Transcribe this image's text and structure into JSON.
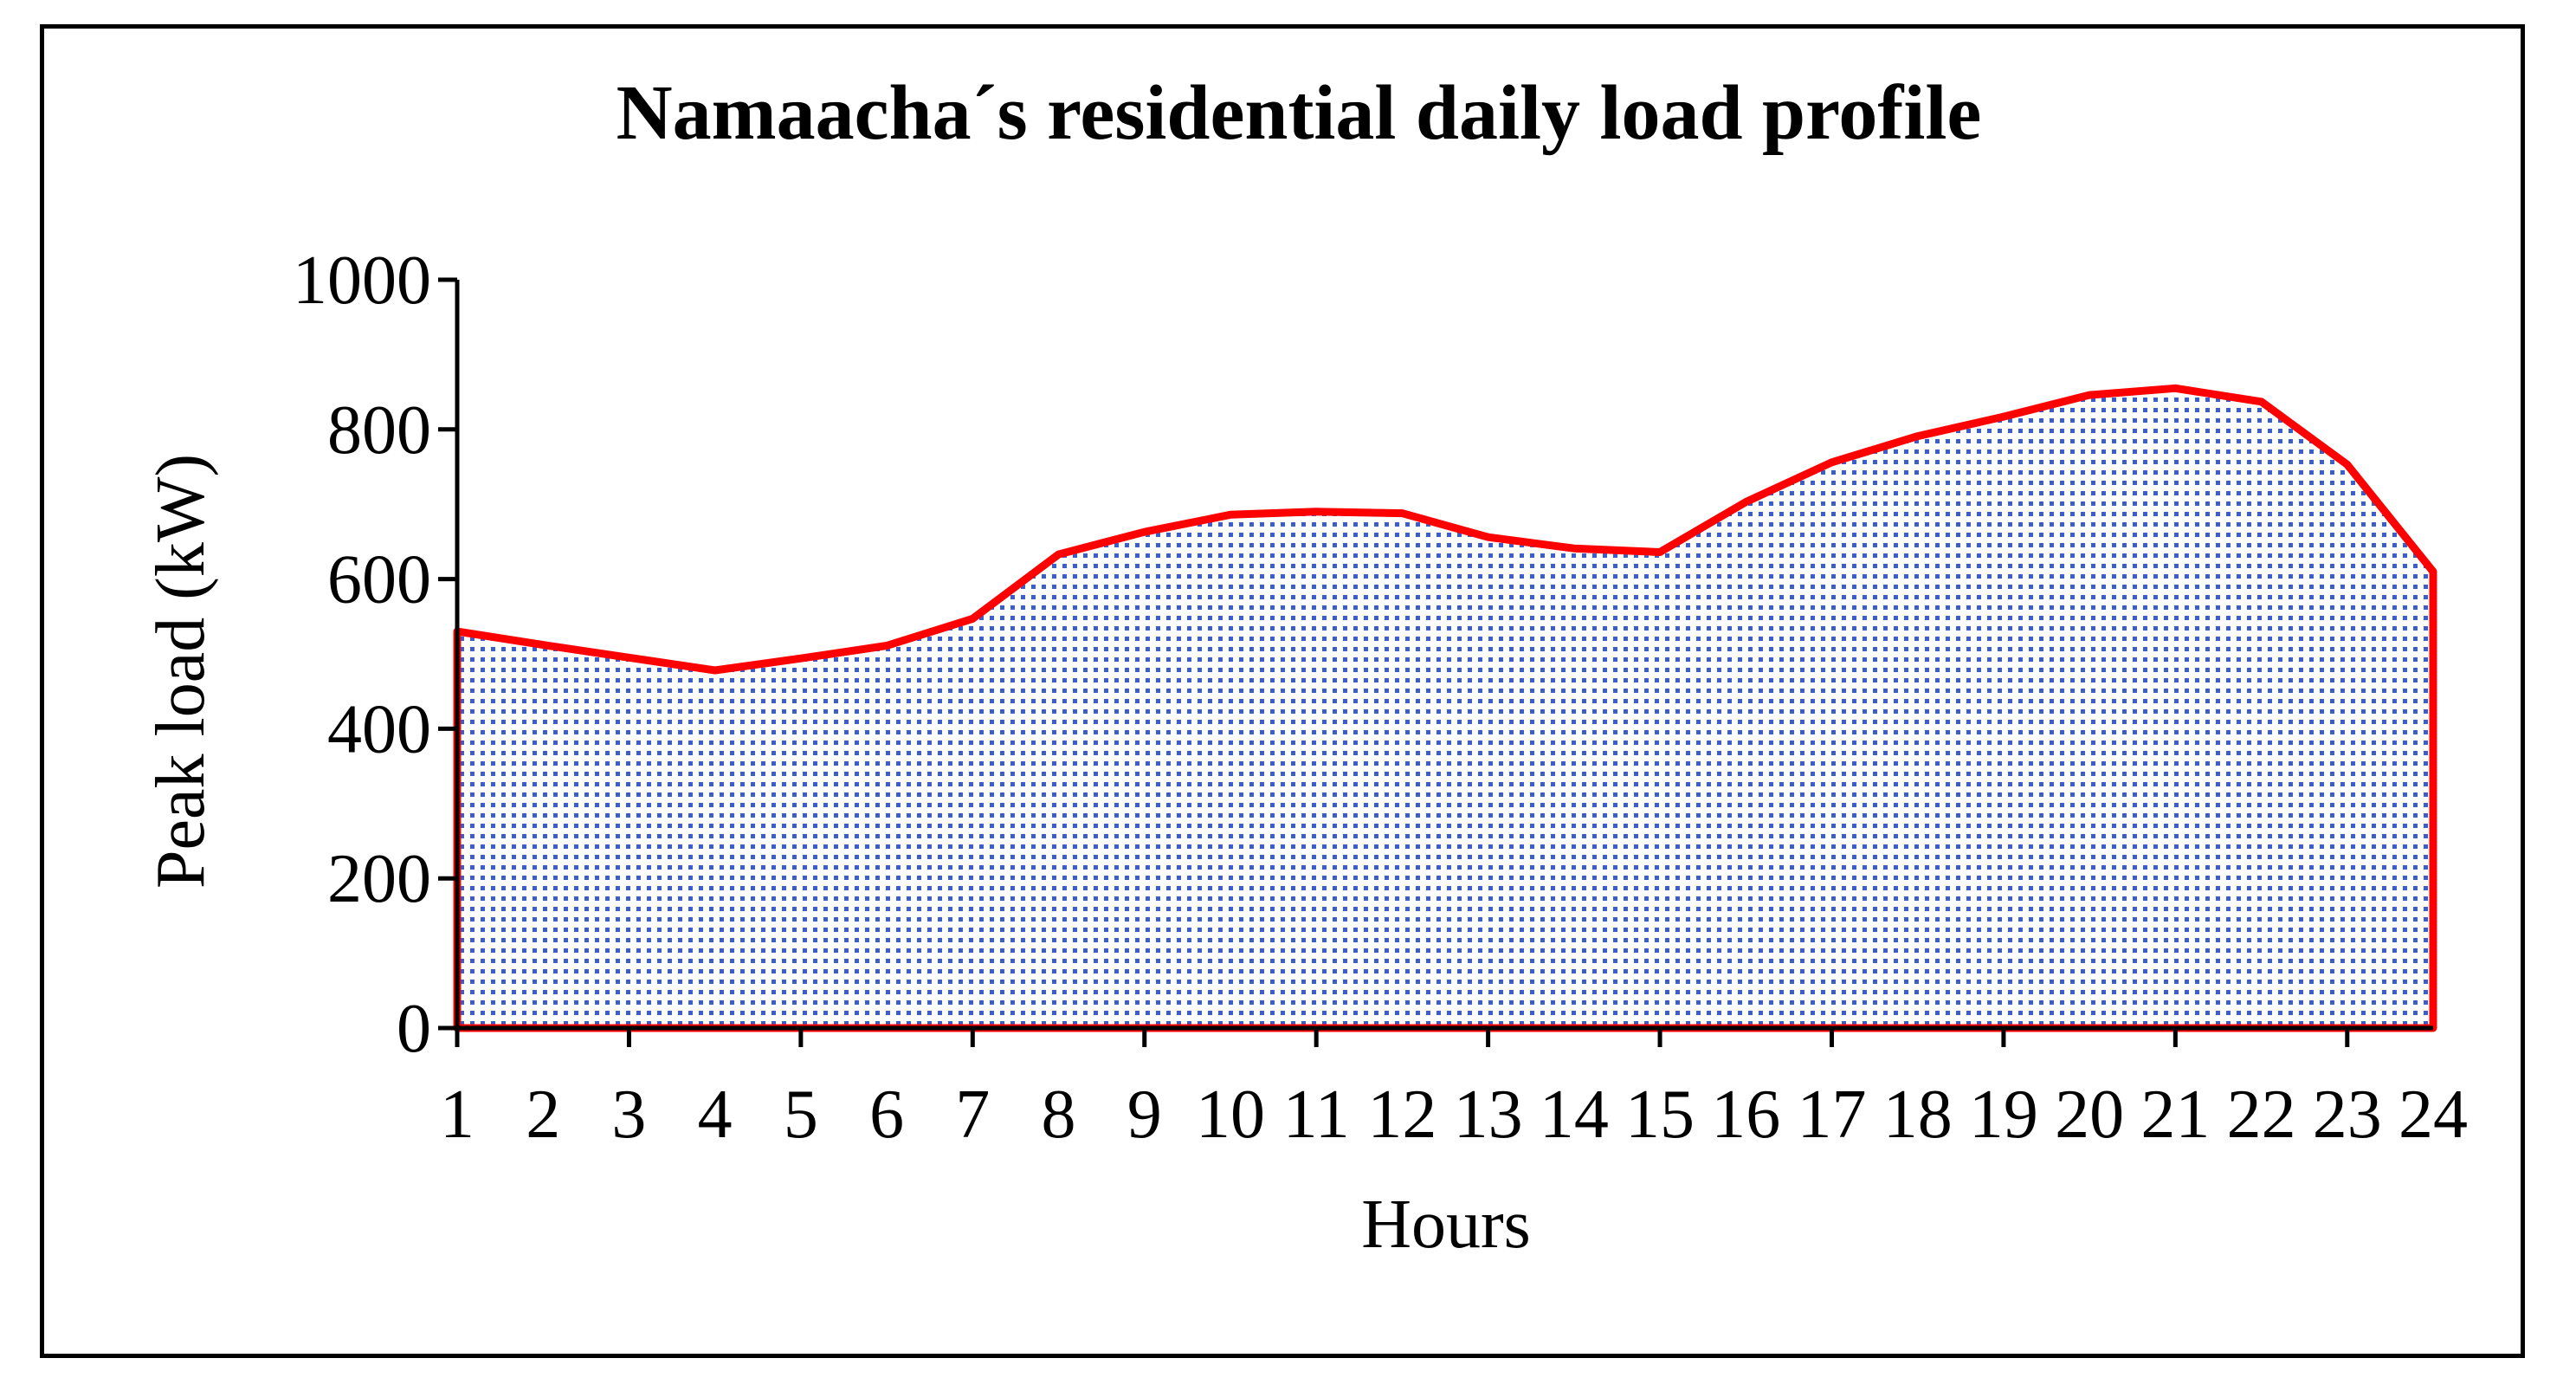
{
  "chart_data": {
    "type": "area",
    "title": "Namaacha´s residential daily load profile",
    "xlabel": "Hours",
    "ylabel": "Peak load (kW)",
    "categories": [
      "1",
      "2",
      "3",
      "4",
      "5",
      "6",
      "7",
      "8",
      "9",
      "10",
      "11",
      "12",
      "13",
      "14",
      "15",
      "16",
      "17",
      "18",
      "19",
      "20",
      "21",
      "22",
      "23",
      "24"
    ],
    "x": [
      1,
      2,
      3,
      4,
      5,
      6,
      7,
      8,
      9,
      10,
      11,
      12,
      13,
      14,
      15,
      16,
      17,
      18,
      19,
      20,
      21,
      22,
      23,
      24
    ],
    "values": [
      530,
      512,
      495,
      478,
      494,
      511,
      547,
      633,
      663,
      686,
      690,
      688,
      656,
      641,
      636,
      703,
      756,
      791,
      817,
      846,
      855,
      837,
      753,
      610
    ],
    "ylim": [
      0,
      1000
    ],
    "yticks": [
      "0",
      "200",
      "400",
      "600",
      "800",
      "1000"
    ],
    "grid": false,
    "legend": "none",
    "colors": {
      "line": "#ff0000",
      "fill_dots": "#3a5fcd",
      "fill_bg": "#ffffff"
    }
  }
}
